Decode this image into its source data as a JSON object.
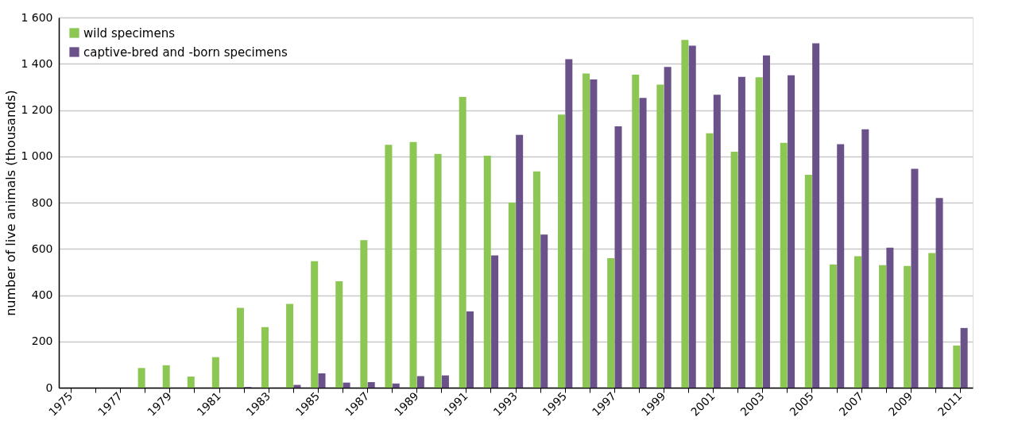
{
  "chart_data": {
    "type": "bar",
    "ylabel": "number of live animals (thousands)",
    "categories": [
      "1975",
      null,
      "1977",
      null,
      "1979",
      null,
      "1981",
      null,
      "1983",
      null,
      "1985",
      null,
      "1987",
      null,
      "1989",
      null,
      "1991",
      null,
      "1993",
      null,
      "1995",
      null,
      "1997",
      null,
      "1999",
      null,
      "2001",
      null,
      "2003",
      null,
      "2005",
      null,
      "2007",
      null,
      "2009",
      null,
      "2011"
    ],
    "series": [
      {
        "name": "wild specimens",
        "color": "#8cc653",
        "values": [
          0,
          0,
          0,
          85,
          97,
          48,
          132,
          345,
          262,
          362,
          547,
          460,
          638,
          1050,
          1062,
          1010,
          1257,
          1003,
          800,
          935,
          1180,
          1358,
          560,
          1353,
          1310,
          1503,
          1100,
          1020,
          1342,
          1058,
          920,
          532,
          568,
          530,
          526,
          582,
          182
        ]
      },
      {
        "name": "captive-bred and -born specimens",
        "color": "#6b5189",
        "values": [
          0,
          0,
          0,
          0,
          0,
          0,
          0,
          3,
          0,
          12,
          62,
          22,
          24,
          18,
          50,
          53,
          330,
          572,
          1093,
          662,
          1420,
          1332,
          1130,
          1252,
          1386,
          1478,
          1266,
          1343,
          1436,
          1350,
          1488,
          1052,
          1117,
          605,
          946,
          820,
          258
        ]
      }
    ],
    "ylim": [
      0,
      1600
    ],
    "yticks": [
      0,
      200,
      400,
      600,
      800,
      {
        "value": 1000,
        "label": "1 000"
      },
      {
        "value": 1200,
        "label": "1 200"
      },
      {
        "value": 1400,
        "label": "1 400"
      },
      {
        "value": 1600,
        "label": "1 600"
      }
    ],
    "grid": "y",
    "legend": "top left"
  }
}
